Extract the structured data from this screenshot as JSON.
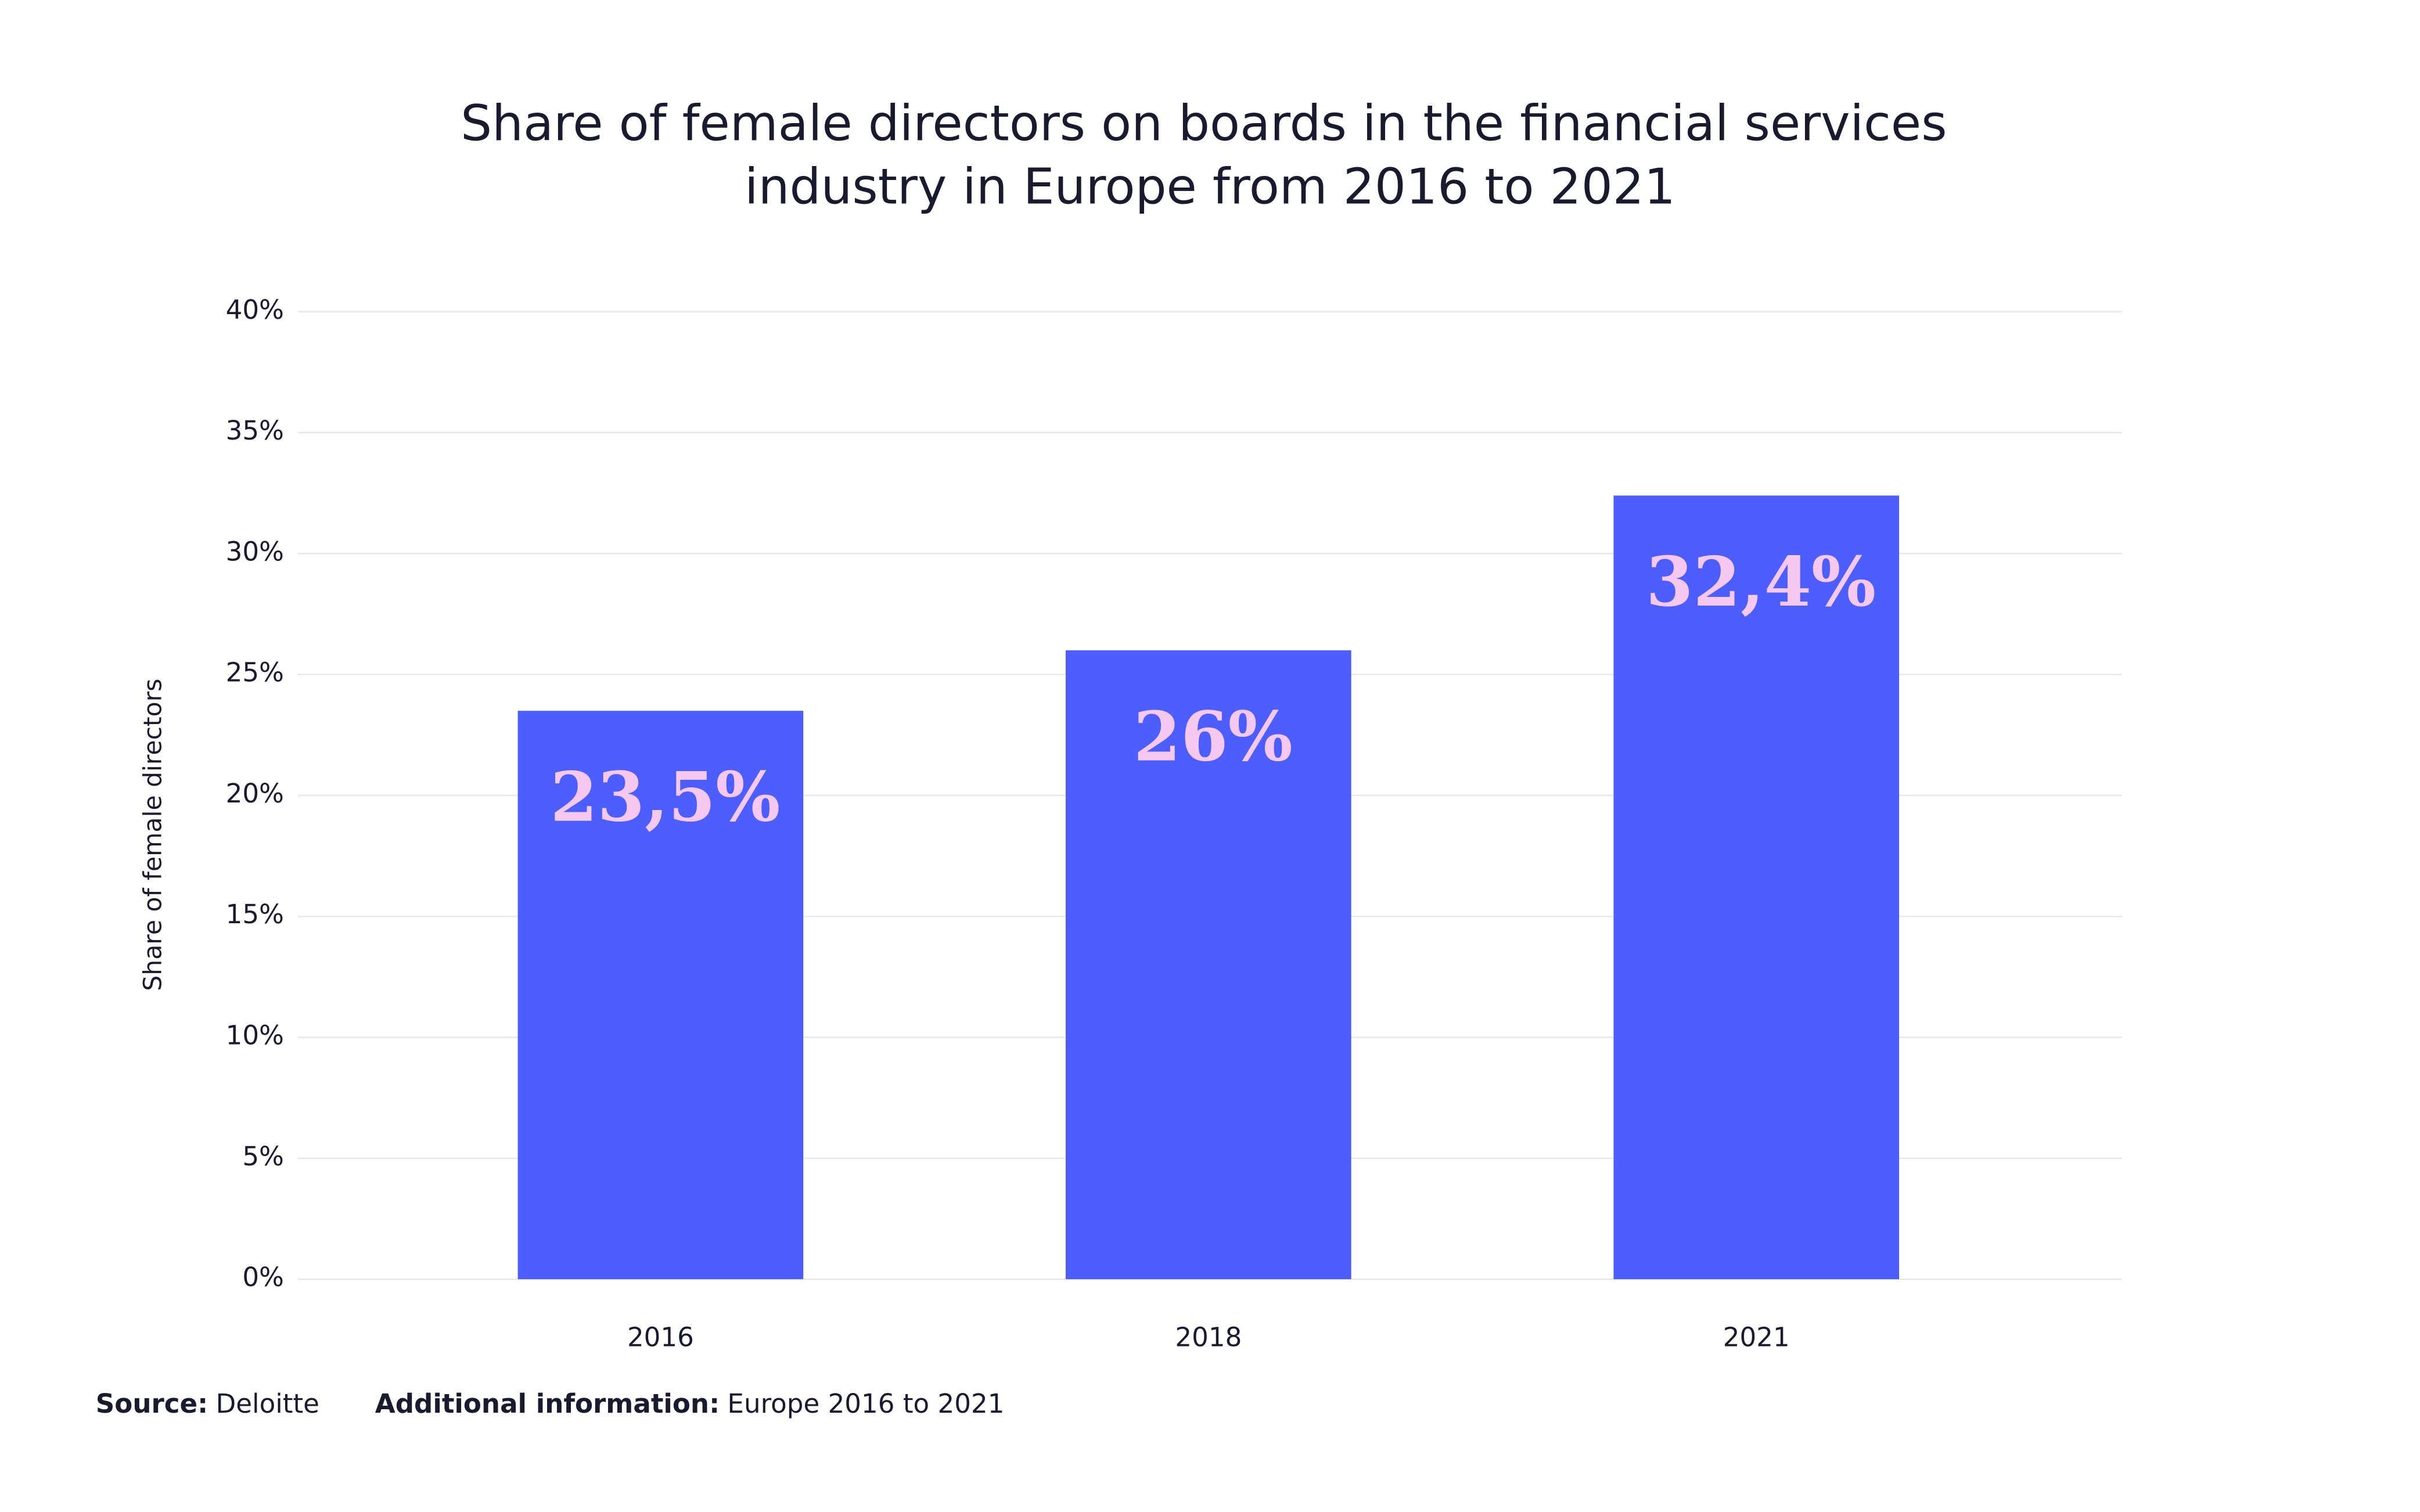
{
  "chart_data": {
    "type": "bar",
    "title": [
      "Share of female directors on boards in the financial services",
      "industry in Europe from 2016 to 2021"
    ],
    "y_label": "Share of female directors",
    "categories": [
      "2016",
      "2018",
      "2021"
    ],
    "values": [
      23.5,
      26,
      32.4
    ],
    "value_labels": [
      "23,5%",
      "26%",
      "32,4%"
    ],
    "color": "#4d5efe",
    "value_label_color": "#f6c8f0",
    "ylim": [
      0,
      40
    ],
    "yticks": [
      {
        "value": 0,
        "label": "0%"
      },
      {
        "value": 5,
        "label": "5%"
      },
      {
        "value": 10,
        "label": "10%"
      },
      {
        "value": 15,
        "label": "15%"
      },
      {
        "value": 20,
        "label": "20%"
      },
      {
        "value": 25,
        "label": "25%"
      },
      {
        "value": 30,
        "label": "30%"
      },
      {
        "value": 35,
        "label": "35%"
      },
      {
        "value": 40,
        "label": "40%"
      }
    ],
    "grid": true,
    "source_label": "Source:",
    "source": "Deloitte",
    "additional_label": "Additional information:",
    "additional": "Europe 2016 to 2021"
  }
}
